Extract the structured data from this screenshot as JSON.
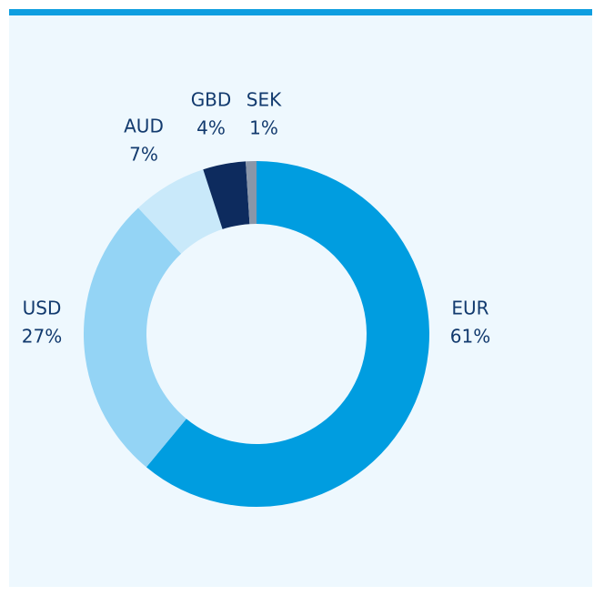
{
  "chart_data": {
    "type": "donut",
    "categories": [
      "EUR",
      "USD",
      "AUD",
      "GBD",
      "SEK"
    ],
    "values": [
      61,
      27,
      7,
      4,
      1
    ],
    "value_labels": [
      "61%",
      "27%",
      "7%",
      "4%",
      "1%"
    ],
    "colors": [
      "#009de0",
      "#94d4f5",
      "#c9e9fa",
      "#0d2b5e",
      "#8a96a8"
    ]
  }
}
